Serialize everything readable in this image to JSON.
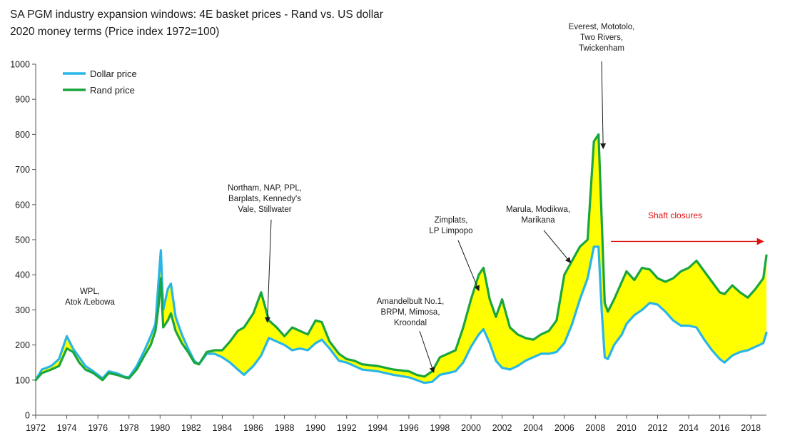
{
  "chart_data": {
    "type": "line",
    "title": "SA PGM industry expansion windows: 4E basket prices - Rand vs. US dollar",
    "subtitle": "2020 money terms (Price index 1972=100)",
    "xlabel": "",
    "ylabel": "",
    "xlim": [
      1972,
      2019
    ],
    "ylim": [
      0,
      1000
    ],
    "yticks": [
      0,
      100,
      200,
      300,
      400,
      500,
      600,
      700,
      800,
      900,
      1000
    ],
    "xticks": [
      "1972",
      "1974",
      "1976",
      "1978",
      "1980",
      "1982",
      "1984",
      "1986",
      "1988",
      "1990",
      "1992",
      "1994",
      "1996",
      "1998",
      "2000",
      "2002",
      "2004",
      "2006",
      "2008",
      "2010",
      "2012",
      "2014",
      "2016",
      "2018"
    ],
    "grid": false,
    "legend_position": "top-left",
    "fill_between": {
      "color": "#ffff00",
      "description": "area between Rand price and Dollar price"
    },
    "series": [
      {
        "name": "Dollar price",
        "color": "#29b6e6",
        "points": [
          [
            1972,
            100
          ],
          [
            1972.4,
            130
          ],
          [
            1973,
            140
          ],
          [
            1973.5,
            160
          ],
          [
            1974,
            225
          ],
          [
            1974.4,
            190
          ],
          [
            1974.8,
            165
          ],
          [
            1975.2,
            140
          ],
          [
            1975.7,
            125
          ],
          [
            1976,
            115
          ],
          [
            1976.3,
            105
          ],
          [
            1976.7,
            125
          ],
          [
            1977.2,
            120
          ],
          [
            1977.7,
            110
          ],
          [
            1978,
            108
          ],
          [
            1978.5,
            140
          ],
          [
            1979,
            185
          ],
          [
            1979.4,
            225
          ],
          [
            1979.7,
            260
          ],
          [
            1979.9,
            380
          ],
          [
            1980.05,
            470
          ],
          [
            1980.2,
            300
          ],
          [
            1980.5,
            360
          ],
          [
            1980.7,
            375
          ],
          [
            1981,
            280
          ],
          [
            1981.4,
            230
          ],
          [
            1981.8,
            190
          ],
          [
            1982.2,
            155
          ],
          [
            1982.5,
            145
          ],
          [
            1983,
            175
          ],
          [
            1983.5,
            175
          ],
          [
            1984,
            165
          ],
          [
            1984.5,
            150
          ],
          [
            1985,
            130
          ],
          [
            1985.4,
            115
          ],
          [
            1986,
            140
          ],
          [
            1986.5,
            170
          ],
          [
            1987,
            220
          ],
          [
            1987.5,
            210
          ],
          [
            1988,
            200
          ],
          [
            1988.5,
            185
          ],
          [
            1989,
            190
          ],
          [
            1989.5,
            185
          ],
          [
            1990,
            205
          ],
          [
            1990.4,
            215
          ],
          [
            1990.9,
            190
          ],
          [
            1991.5,
            155
          ],
          [
            1992,
            150
          ],
          [
            1992.5,
            140
          ],
          [
            1993,
            130
          ],
          [
            1994,
            125
          ],
          [
            1995,
            115
          ],
          [
            1996,
            108
          ],
          [
            1996.5,
            100
          ],
          [
            1997,
            92
          ],
          [
            1997.5,
            95
          ],
          [
            1998,
            115
          ],
          [
            1998.5,
            120
          ],
          [
            1999,
            125
          ],
          [
            1999.5,
            150
          ],
          [
            2000,
            195
          ],
          [
            2000.5,
            230
          ],
          [
            2000.8,
            245
          ],
          [
            2001.2,
            205
          ],
          [
            2001.6,
            155
          ],
          [
            2002,
            135
          ],
          [
            2002.5,
            130
          ],
          [
            2003,
            140
          ],
          [
            2003.5,
            155
          ],
          [
            2004,
            165
          ],
          [
            2004.5,
            175
          ],
          [
            2005,
            175
          ],
          [
            2005.5,
            180
          ],
          [
            2006,
            205
          ],
          [
            2006.5,
            260
          ],
          [
            2007,
            330
          ],
          [
            2007.5,
            390
          ],
          [
            2007.9,
            480
          ],
          [
            2008.2,
            480
          ],
          [
            2008.4,
            300
          ],
          [
            2008.6,
            165
          ],
          [
            2008.8,
            160
          ],
          [
            2009.2,
            200
          ],
          [
            2009.7,
            230
          ],
          [
            2010,
            260
          ],
          [
            2010.5,
            285
          ],
          [
            2011,
            300
          ],
          [
            2011.5,
            320
          ],
          [
            2012,
            315
          ],
          [
            2012.5,
            295
          ],
          [
            2013,
            270
          ],
          [
            2013.5,
            255
          ],
          [
            2014,
            255
          ],
          [
            2014.5,
            250
          ],
          [
            2015,
            215
          ],
          [
            2015.5,
            185
          ],
          [
            2016,
            160
          ],
          [
            2016.3,
            150
          ],
          [
            2016.8,
            170
          ],
          [
            2017.3,
            180
          ],
          [
            2017.8,
            185
          ],
          [
            2018.3,
            195
          ],
          [
            2018.8,
            205
          ],
          [
            2019,
            235
          ]
        ]
      },
      {
        "name": "Rand price",
        "color": "#1aa63c",
        "points": [
          [
            1972,
            100
          ],
          [
            1972.4,
            120
          ],
          [
            1973,
            130
          ],
          [
            1973.5,
            140
          ],
          [
            1974,
            190
          ],
          [
            1974.4,
            180
          ],
          [
            1974.8,
            150
          ],
          [
            1975.2,
            130
          ],
          [
            1975.7,
            120
          ],
          [
            1976,
            110
          ],
          [
            1976.3,
            100
          ],
          [
            1976.7,
            120
          ],
          [
            1977.2,
            115
          ],
          [
            1977.7,
            108
          ],
          [
            1978,
            105
          ],
          [
            1978.5,
            130
          ],
          [
            1979,
            170
          ],
          [
            1979.4,
            200
          ],
          [
            1979.7,
            240
          ],
          [
            1979.9,
            310
          ],
          [
            1980.05,
            390
          ],
          [
            1980.2,
            250
          ],
          [
            1980.5,
            270
          ],
          [
            1980.7,
            290
          ],
          [
            1981,
            240
          ],
          [
            1981.4,
            205
          ],
          [
            1981.8,
            180
          ],
          [
            1982.2,
            150
          ],
          [
            1982.5,
            145
          ],
          [
            1983,
            180
          ],
          [
            1983.5,
            185
          ],
          [
            1984,
            185
          ],
          [
            1984.5,
            210
          ],
          [
            1985,
            240
          ],
          [
            1985.4,
            250
          ],
          [
            1986,
            290
          ],
          [
            1986.5,
            350
          ],
          [
            1987,
            270
          ],
          [
            1987.5,
            250
          ],
          [
            1988,
            225
          ],
          [
            1988.5,
            250
          ],
          [
            1989,
            240
          ],
          [
            1989.5,
            230
          ],
          [
            1990,
            270
          ],
          [
            1990.4,
            265
          ],
          [
            1990.9,
            210
          ],
          [
            1991.5,
            175
          ],
          [
            1992,
            160
          ],
          [
            1992.5,
            155
          ],
          [
            1993,
            145
          ],
          [
            1994,
            140
          ],
          [
            1995,
            130
          ],
          [
            1996,
            125
          ],
          [
            1996.5,
            115
          ],
          [
            1997,
            110
          ],
          [
            1997.5,
            125
          ],
          [
            1998,
            165
          ],
          [
            1998.5,
            175
          ],
          [
            1999,
            185
          ],
          [
            1999.5,
            250
          ],
          [
            2000,
            330
          ],
          [
            2000.5,
            400
          ],
          [
            2000.8,
            420
          ],
          [
            2001.2,
            330
          ],
          [
            2001.6,
            280
          ],
          [
            2002,
            330
          ],
          [
            2002.5,
            250
          ],
          [
            2003,
            230
          ],
          [
            2003.5,
            220
          ],
          [
            2004,
            215
          ],
          [
            2004.5,
            230
          ],
          [
            2005,
            240
          ],
          [
            2005.5,
            270
          ],
          [
            2006,
            400
          ],
          [
            2006.5,
            440
          ],
          [
            2007,
            480
          ],
          [
            2007.5,
            500
          ],
          [
            2007.9,
            780
          ],
          [
            2008.2,
            800
          ],
          [
            2008.4,
            560
          ],
          [
            2008.6,
            320
          ],
          [
            2008.8,
            295
          ],
          [
            2009.2,
            330
          ],
          [
            2009.7,
            380
          ],
          [
            2010,
            410
          ],
          [
            2010.5,
            385
          ],
          [
            2011,
            420
          ],
          [
            2011.5,
            415
          ],
          [
            2012,
            390
          ],
          [
            2012.5,
            380
          ],
          [
            2013,
            390
          ],
          [
            2013.5,
            410
          ],
          [
            2014,
            420
          ],
          [
            2014.5,
            440
          ],
          [
            2015,
            410
          ],
          [
            2015.5,
            380
          ],
          [
            2016,
            350
          ],
          [
            2016.3,
            345
          ],
          [
            2016.8,
            370
          ],
          [
            2017.3,
            350
          ],
          [
            2017.8,
            335
          ],
          [
            2018.3,
            360
          ],
          [
            2018.8,
            390
          ],
          [
            2019,
            455
          ]
        ]
      }
    ],
    "annotations": [
      {
        "lines": [
          "WPL,",
          "Atok /Lebowa"
        ]
      },
      {
        "lines": [
          "Northam, NAP, PPL,",
          "Barplats, Kennedy's",
          "Vale, Stillwater"
        ],
        "arrow_to": [
          1986.9,
          265
        ]
      },
      {
        "lines": [
          "Amandelbult No.1,",
          "BRPM, Mimosa,",
          "Kroondal"
        ],
        "arrow_to": [
          1997.6,
          122
        ]
      },
      {
        "lines": [
          "Zimplats,",
          "LP Limpopo"
        ],
        "arrow_to": [
          2000.5,
          355
        ]
      },
      {
        "lines": [
          "Marula, Modikwa,",
          "Marikana"
        ],
        "arrow_to": [
          2006.4,
          435
        ]
      },
      {
        "lines": [
          "Everest, Mototolo,",
          "Two Rivers,",
          "Twickenham"
        ],
        "arrow_to": [
          2008.5,
          760
        ]
      },
      {
        "lines": [
          "Shaft closures"
        ],
        "color": "#e01010",
        "arrow_from": [
          2009.0,
          495
        ],
        "arrow_to": [
          2018.8,
          495
        ]
      }
    ]
  }
}
